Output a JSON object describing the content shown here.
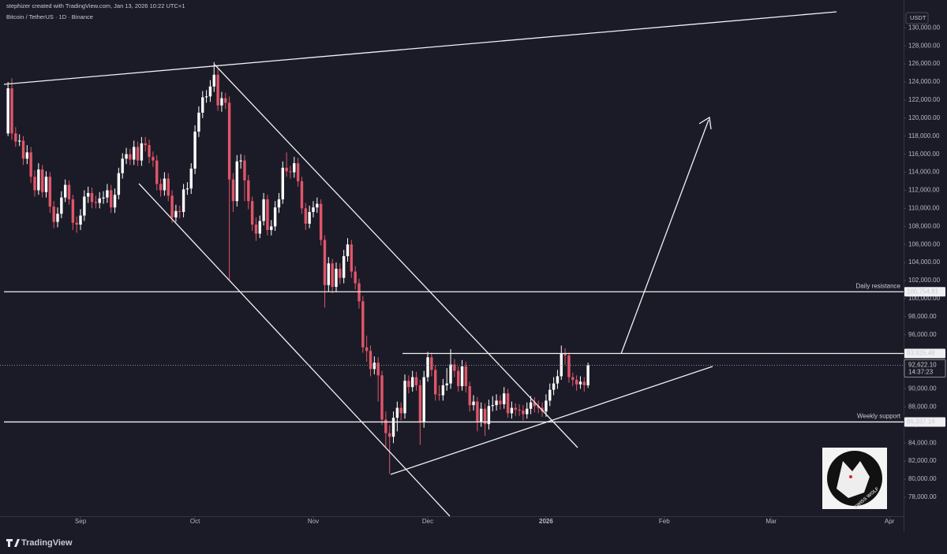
{
  "chart_data": {
    "type": "candlestick",
    "header": "stephizer created with TradingView.com, Jan 13, 2026 10:22 UTC+1",
    "title": "Bitcoin / TetherUS · 1D · Binance",
    "currency": "USDT",
    "brand": "TradingView",
    "logo_text": "SWISS WOLF",
    "up_color": "#ffffff",
    "down_color": "#e05668",
    "open": [
      118300,
      123300,
      118300,
      117400,
      117500,
      115500,
      116200,
      113500,
      112000,
      114300,
      111800,
      113500,
      110200,
      108500,
      109400,
      111200,
      112600,
      111000,
      108400,
      108200,
      109200,
      111300,
      111700,
      110700,
      110600,
      111100,
      111200,
      112000,
      110100,
      111500,
      113900,
      115500,
      116000,
      115400,
      116800,
      115300,
      117200,
      117000,
      115700,
      115300,
      112700,
      112000,
      113300,
      111400,
      109000,
      109700,
      109600,
      112100,
      112200,
      114400,
      118500,
      120600,
      122300,
      122400,
      123500,
      124800,
      121400,
      122200,
      121700,
      113200,
      110800,
      115200,
      115300,
      113100,
      110800,
      108200,
      107200,
      108600,
      111000,
      107600,
      108000,
      110100,
      111000,
      114500,
      114100,
      114000,
      115000,
      113000,
      110000,
      108300,
      109600,
      110100,
      110500,
      106500,
      101500,
      103900,
      101300,
      103300,
      102300,
      104700,
      106000,
      103000,
      101700,
      99700,
      94600,
      94200,
      92200,
      92900,
      91500,
      86600,
      85100,
      84700,
      86800,
      87900,
      87300,
      90900,
      90200,
      91300,
      90400,
      86300,
      91300,
      93500,
      92100,
      89400,
      89300,
      90400,
      90600,
      92700,
      92000,
      90300,
      92500,
      90300,
      88200,
      88600,
      86400,
      87800,
      86100,
      88100,
      88200,
      88700,
      88300,
      89500,
      87300,
      87900,
      87700,
      87600,
      87200,
      87800,
      88500,
      88100,
      87900,
      87500,
      88700,
      89900,
      90600,
      91400,
      93900,
      93700,
      91300,
      91000,
      90500,
      90800,
      90400
    ],
    "close": [
      123300,
      118300,
      117400,
      117500,
      115500,
      116200,
      113500,
      112000,
      114300,
      111800,
      113500,
      110200,
      108500,
      109400,
      111200,
      112600,
      111000,
      108400,
      108200,
      109200,
      111300,
      111700,
      110700,
      110600,
      111100,
      111200,
      112000,
      110100,
      111500,
      113900,
      115500,
      116000,
      115400,
      116800,
      115300,
      117200,
      117000,
      115700,
      115300,
      112700,
      112000,
      113300,
      111400,
      109000,
      109700,
      109600,
      112100,
      112200,
      114400,
      118500,
      120600,
      122300,
      122400,
      123500,
      124800,
      121400,
      122200,
      121700,
      113200,
      110800,
      115200,
      115300,
      113100,
      110800,
      108200,
      107200,
      108600,
      111000,
      107600,
      108000,
      110100,
      111000,
      114500,
      114100,
      114000,
      115000,
      113000,
      110000,
      108300,
      109600,
      110100,
      110500,
      106500,
      101500,
      103900,
      101300,
      103300,
      102300,
      104700,
      106000,
      103000,
      101700,
      99700,
      94600,
      94200,
      92200,
      92900,
      91500,
      86600,
      85100,
      84700,
      86800,
      87900,
      87300,
      90900,
      90200,
      91300,
      90400,
      86300,
      91300,
      93500,
      92100,
      89400,
      89300,
      90400,
      90600,
      92700,
      92000,
      90300,
      92500,
      90300,
      88200,
      88600,
      86400,
      87800,
      86100,
      88100,
      88200,
      88700,
      88300,
      89500,
      87300,
      87900,
      87700,
      87600,
      87200,
      87800,
      88500,
      88100,
      87900,
      87500,
      88700,
      89900,
      90600,
      91400,
      93900,
      93700,
      91300,
      91000,
      90500,
      90800,
      90400,
      92622.1
    ],
    "high": [
      124000,
      124400,
      119000,
      118200,
      118000,
      117000,
      116800,
      114200,
      115000,
      114800,
      114100,
      114000,
      110800,
      110100,
      111900,
      113200,
      113100,
      111500,
      109100,
      109900,
      112000,
      112400,
      112300,
      111400,
      111800,
      111900,
      112700,
      112600,
      112200,
      114500,
      116100,
      116700,
      116600,
      117500,
      117400,
      117900,
      117900,
      117600,
      116300,
      115900,
      113300,
      114000,
      113900,
      112000,
      110400,
      110300,
      112700,
      112900,
      115000,
      119200,
      121300,
      123000,
      123100,
      124200,
      126200,
      125400,
      122900,
      122800,
      122400,
      113900,
      115900,
      116000,
      115900,
      113700,
      111300,
      109000,
      109200,
      111700,
      111500,
      108700,
      110800,
      111700,
      115200,
      116200,
      114700,
      115700,
      115600,
      113500,
      110600,
      110300,
      110800,
      111200,
      111000,
      107000,
      104600,
      104400,
      104000,
      103900,
      105400,
      106700,
      106500,
      103600,
      102200,
      100300,
      95900,
      94800,
      93600,
      93500,
      92000,
      87500,
      86000,
      87500,
      88600,
      88500,
      91600,
      91500,
      92000,
      91900,
      91000,
      92000,
      94100,
      94000,
      92600,
      90400,
      91100,
      92300,
      94400,
      93300,
      92500,
      93200,
      93000,
      90800,
      89300,
      89100,
      88500,
      88400,
      88800,
      89200,
      89400,
      89300,
      90200,
      90000,
      88600,
      88400,
      88300,
      88200,
      88500,
      89200,
      89100,
      88700,
      88500,
      89400,
      90600,
      91300,
      92100,
      94800,
      94500,
      94000,
      91800,
      91500,
      91400,
      91300,
      92900
    ],
    "low": [
      118000,
      117600,
      116800,
      116900,
      114800,
      114900,
      112800,
      111300,
      111500,
      111200,
      111200,
      109500,
      107800,
      107900,
      108900,
      110700,
      110400,
      107600,
      107300,
      107600,
      108600,
      110600,
      110000,
      110000,
      110000,
      110500,
      110600,
      109500,
      109500,
      111000,
      113300,
      114900,
      114800,
      114800,
      114700,
      114700,
      116300,
      115000,
      114600,
      112000,
      111300,
      111400,
      110800,
      108400,
      108500,
      108900,
      109000,
      111500,
      111600,
      113800,
      117900,
      120000,
      121700,
      121800,
      122900,
      120800,
      120700,
      121000,
      102000,
      109600,
      110200,
      114400,
      110800,
      109900,
      107500,
      106400,
      106700,
      108100,
      107000,
      107000,
      107500,
      109500,
      110500,
      113500,
      113300,
      113400,
      112400,
      109400,
      107600,
      107800,
      109000,
      109500,
      105900,
      99000,
      100800,
      100600,
      100700,
      101600,
      101700,
      104100,
      102300,
      101000,
      98900,
      94000,
      93000,
      91400,
      91600,
      88600,
      86000,
      83500,
      80600,
      84000,
      85300,
      86500,
      86700,
      89500,
      89700,
      89800,
      83800,
      85700,
      90800,
      91400,
      88700,
      88700,
      88700,
      89800,
      90000,
      91300,
      89700,
      89800,
      89600,
      87500,
      87600,
      85300,
      85800,
      84800,
      85500,
      87500,
      87600,
      87700,
      87800,
      86800,
      86700,
      87000,
      87000,
      86500,
      86700,
      87200,
      87400,
      87300,
      86900,
      86900,
      88100,
      89300,
      90000,
      91000,
      92700,
      90700,
      90300,
      89800,
      90000,
      89700,
      90100
    ],
    "xlim": [
      -2.1,
      234.7
    ],
    "xticks": [
      {
        "value": 19,
        "label": "Sep"
      },
      {
        "value": 49,
        "label": "Oct"
      },
      {
        "value": 80,
        "label": "Nov"
      },
      {
        "value": 110,
        "label": "Dec"
      },
      {
        "value": 141,
        "label": "2026"
      },
      {
        "value": 172,
        "label": "Feb"
      },
      {
        "value": 200,
        "label": "Mar"
      },
      {
        "value": 231,
        "label": "Apr"
      }
    ],
    "ylim": [
      75900,
      133080
    ],
    "yticks": [
      {
        "value": 78000,
        "label": "78,000.00"
      },
      {
        "value": 80000,
        "label": "80,000.00"
      },
      {
        "value": 82000,
        "label": "82,000.00"
      },
      {
        "value": 84000,
        "label": "84,000.00"
      },
      {
        "value": 86000,
        "label": "86,000.00"
      },
      {
        "value": 88000,
        "label": "88,000.00"
      },
      {
        "value": 90000,
        "label": "90,000.00"
      },
      {
        "value": 92000,
        "label": "92,000.00"
      },
      {
        "value": 94000,
        "label": "94,000.00"
      },
      {
        "value": 96000,
        "label": "96,000.00"
      },
      {
        "value": 98000,
        "label": "98,000.00"
      },
      {
        "value": 100000,
        "label": "100,000.00"
      },
      {
        "value": 102000,
        "label": "102,000.00"
      },
      {
        "value": 104000,
        "label": "104,000.00"
      },
      {
        "value": 106000,
        "label": "106,000.00"
      },
      {
        "value": 108000,
        "label": "108,000.00"
      },
      {
        "value": 110000,
        "label": "110,000.00"
      },
      {
        "value": 112000,
        "label": "112,000.00"
      },
      {
        "value": 114000,
        "label": "114,000.00"
      },
      {
        "value": 116000,
        "label": "116,000.00"
      },
      {
        "value": 118000,
        "label": "118,000.00"
      },
      {
        "value": 120000,
        "label": "120,000.00"
      },
      {
        "value": 122000,
        "label": "122,000.00"
      },
      {
        "value": 124000,
        "label": "124,000.00"
      },
      {
        "value": 126000,
        "label": "126,000.00"
      },
      {
        "value": 128000,
        "label": "128,000.00"
      },
      {
        "value": 130000,
        "label": "130,000.00"
      }
    ],
    "levels": [
      {
        "value": 100754.81,
        "label": "100,754.81",
        "name": "Daily resistance",
        "color": "#e05668"
      },
      {
        "value": 93925.48,
        "label": "93,925.48"
      },
      {
        "value": 86337.14,
        "label": "86,337.14",
        "name": "Weekly support",
        "color": "#e8e8ec"
      }
    ],
    "last_price": {
      "value": 92622.1,
      "label": "92,622.10",
      "countdown": "14:37:23"
    }
  }
}
